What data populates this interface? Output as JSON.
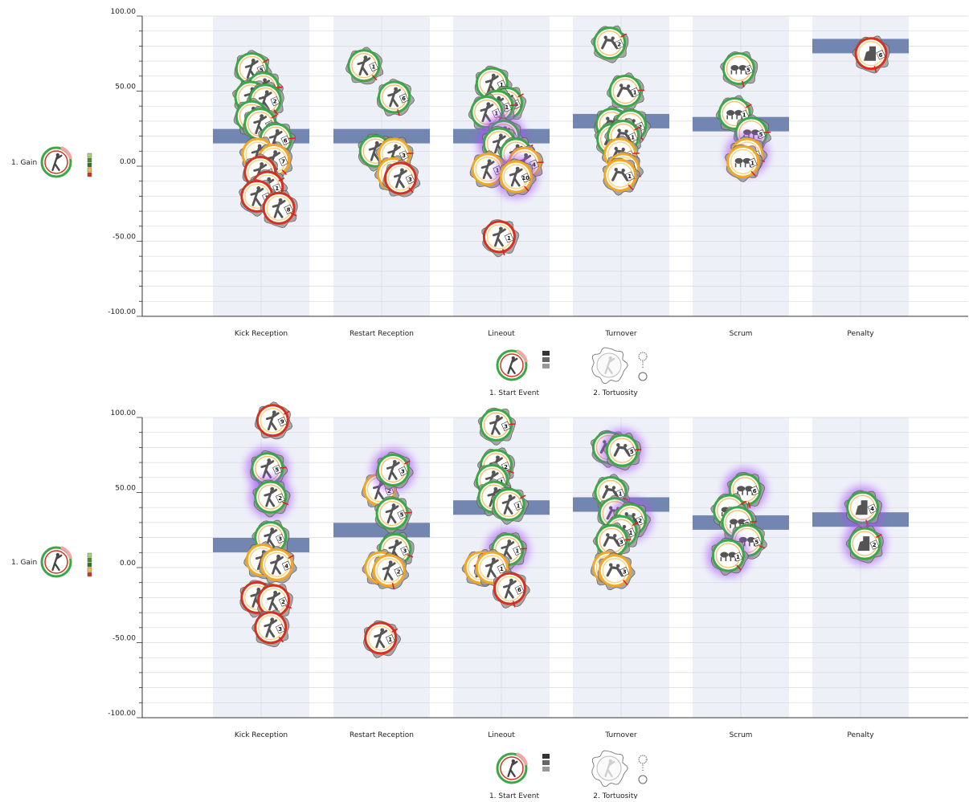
{
  "side_legend": {
    "label": "1. Gain",
    "icon": "gain-glyph-icon",
    "scale_colors": [
      "#a6d96a",
      "#4d9221",
      "#2b7a2b",
      "#f0c030",
      "#d7301f"
    ]
  },
  "bottom_legend": {
    "start_event_label": "1. Start Event",
    "tortuosity_label": "2. Tortuosity",
    "start_event_icon": "start-event-glyph-icon",
    "tortuosity_icon": "tortuosity-glyph-icon"
  },
  "colors": {
    "band": "#eef0f8",
    "median_bar": "#6b7fad",
    "grid": "#d9d9d9",
    "glow": "#a855f7",
    "ring_green": "#3aa845",
    "ring_red": "#d7301f",
    "ring_orange": "#f5a623",
    "silhouette": "#555555"
  },
  "chart_data": [
    {
      "type": "scatter",
      "yticks": [
        "100.00",
        "50.00",
        "0.00",
        "-50.00",
        "-100.00"
      ],
      "ylim": [
        -100,
        100
      ],
      "categories": [
        "Kick Reception",
        "Restart Reception",
        "Lineout",
        "Turnover",
        "Scrum",
        "Penalty"
      ],
      "medians": [
        20,
        20,
        20,
        30,
        28,
        80
      ],
      "points": [
        {
          "c": 0,
          "y": 65,
          "n": "5",
          "dx": -0.45,
          "ring": "green",
          "sil": "kick"
        },
        {
          "c": 0,
          "y": 52,
          "n": "2",
          "dx": 0.1,
          "ring": "green",
          "sil": "kick"
        },
        {
          "c": 0,
          "y": 46,
          "n": "3",
          "dx": -0.5,
          "ring": "green",
          "sil": "kick"
        },
        {
          "c": 0,
          "y": 44,
          "n": "2",
          "dx": 0.2,
          "ring": "green",
          "sil": "kick"
        },
        {
          "c": 0,
          "y": 33,
          "n": "1",
          "dx": -0.45,
          "ring": "green",
          "sil": "kick"
        },
        {
          "c": 0,
          "y": 28,
          "n": "1",
          "dx": -0.05,
          "ring": "green",
          "sil": "kick"
        },
        {
          "c": 0,
          "y": 18,
          "n": "6",
          "dx": 0.7,
          "ring": "green",
          "sil": "kick"
        },
        {
          "c": 0,
          "y": 8,
          "n": "1",
          "dx": -0.15,
          "ring": "orange",
          "sil": "kick"
        },
        {
          "c": 0,
          "y": 4,
          "n": "7",
          "dx": 0.6,
          "ring": "orange",
          "sil": "kick"
        },
        {
          "c": 0,
          "y": -4,
          "n": "2",
          "dx": -0.05,
          "ring": "red",
          "sil": "kick"
        },
        {
          "c": 0,
          "y": -14,
          "n": "1",
          "dx": 0.3,
          "ring": "red",
          "sil": "kick"
        },
        {
          "c": 0,
          "y": -20,
          "n": "1",
          "dx": -0.2,
          "ring": "red",
          "sil": "kick"
        },
        {
          "c": 0,
          "y": -28,
          "n": "8",
          "dx": 0.85,
          "ring": "red",
          "sil": "kick"
        },
        {
          "c": 1,
          "y": 67,
          "n": "1",
          "dx": -0.85,
          "ring": "green",
          "sil": "kick"
        },
        {
          "c": 1,
          "y": 46,
          "n": "6",
          "dx": 0.6,
          "ring": "green",
          "sil": "kick"
        },
        {
          "c": 1,
          "y": 10,
          "n": "1",
          "dx": -0.3,
          "ring": "green",
          "sil": "kick"
        },
        {
          "c": 1,
          "y": 8,
          "n": "3",
          "dx": 0.6,
          "ring": "orange",
          "sil": "kick"
        },
        {
          "c": 1,
          "y": -5,
          "n": "5",
          "dx": 0.55,
          "ring": "orange",
          "sil": "kick"
        },
        {
          "c": 1,
          "y": -8,
          "n": "3",
          "dx": 0.9,
          "ring": "red",
          "sil": "kick"
        },
        {
          "c": 2,
          "y": 55,
          "n": "1",
          "dx": -0.45,
          "ring": "green",
          "sil": "lift"
        },
        {
          "c": 2,
          "y": 42,
          "n": "6",
          "dx": 0.25,
          "ring": "green",
          "sil": "lift"
        },
        {
          "c": 2,
          "y": 40,
          "n": "1",
          "dx": -0.2,
          "ring": "green",
          "sil": "lift"
        },
        {
          "c": 2,
          "y": 36,
          "n": "1",
          "dx": -0.7,
          "ring": "green",
          "sil": "lift"
        },
        {
          "c": 2,
          "y": 20,
          "n": "2",
          "dx": 0.1,
          "ring": "green",
          "sil": "lift",
          "glow": true
        },
        {
          "c": 2,
          "y": 15,
          "n": "1",
          "dx": -0.1,
          "ring": "green",
          "sil": "lift",
          "glow": true
        },
        {
          "c": 2,
          "y": 8,
          "n": "3",
          "dx": 0.7,
          "ring": "green",
          "sil": "lift"
        },
        {
          "c": 2,
          "y": 2,
          "n": "4",
          "dx": 1.1,
          "ring": "orange",
          "sil": "lift"
        },
        {
          "c": 2,
          "y": -2,
          "n": "1",
          "dx": -0.65,
          "ring": "orange",
          "sil": "lift"
        },
        {
          "c": 2,
          "y": -7,
          "n": "10",
          "dx": 0.7,
          "ring": "orange",
          "sil": "lift",
          "glow": true
        },
        {
          "c": 2,
          "y": -47,
          "n": "1",
          "dx": -0.1,
          "ring": "red",
          "sil": "lift"
        },
        {
          "c": 3,
          "y": 82,
          "n": "2",
          "dx": -0.55,
          "ring": "green",
          "sil": "tackle"
        },
        {
          "c": 3,
          "y": 50,
          "n": "1",
          "dx": 0.2,
          "ring": "green",
          "sil": "tackle"
        },
        {
          "c": 3,
          "y": 28,
          "n": "1",
          "dx": -0.45,
          "ring": "green",
          "sil": "tackle"
        },
        {
          "c": 3,
          "y": 27,
          "n": "2",
          "dx": 0.45,
          "ring": "green",
          "sil": "tackle"
        },
        {
          "c": 3,
          "y": 18,
          "n": "2",
          "dx": -0.4,
          "ring": "green",
          "sil": "tackle"
        },
        {
          "c": 3,
          "y": 20,
          "n": "1",
          "dx": 0.1,
          "ring": "green",
          "sil": "tackle"
        },
        {
          "c": 3,
          "y": 8,
          "n": "2",
          "dx": -0.05,
          "ring": "orange",
          "sil": "tackle"
        },
        {
          "c": 3,
          "y": -2,
          "n": "1",
          "dx": 0.1,
          "ring": "orange",
          "sil": "tackle"
        },
        {
          "c": 3,
          "y": -6,
          "n": "1",
          "dx": -0.05,
          "ring": "orange",
          "sil": "tackle"
        },
        {
          "c": 4,
          "y": 65,
          "n": "5",
          "dx": -0.1,
          "ring": "green",
          "sil": "scrum"
        },
        {
          "c": 4,
          "y": 35,
          "n": "1",
          "dx": -0.3,
          "ring": "green",
          "sil": "scrum"
        },
        {
          "c": 4,
          "y": 22,
          "n": "5",
          "dx": 0.5,
          "ring": "green",
          "sil": "scrum"
        },
        {
          "c": 4,
          "y": 8,
          "n": "2",
          "dx": 0.3,
          "ring": "orange",
          "sil": "scrum",
          "glow": true
        },
        {
          "c": 4,
          "y": 3,
          "n": "1",
          "dx": 0.1,
          "ring": "orange",
          "sil": "scrum"
        },
        {
          "c": 5,
          "y": 75,
          "n": "6",
          "dx": 0.5,
          "ring": "red",
          "sil": "penalty"
        }
      ]
    },
    {
      "type": "scatter",
      "yticks": [
        "100.00",
        "50.00",
        "0.00",
        "-50.00",
        "-100.00"
      ],
      "ylim": [
        -100,
        100
      ],
      "categories": [
        "Kick Reception",
        "Restart Reception",
        "Lineout",
        "Turnover",
        "Scrum",
        "Penalty"
      ],
      "medians": [
        15,
        25,
        40,
        42,
        30,
        32
      ],
      "points": [
        {
          "c": 0,
          "y": 98,
          "n": "9",
          "dx": 0.55,
          "ring": "red",
          "sil": "kick"
        },
        {
          "c": 0,
          "y": 66,
          "n": "5",
          "dx": 0.3,
          "ring": "green",
          "sil": "kick",
          "glow": true
        },
        {
          "c": 0,
          "y": 47,
          "n": "2",
          "dx": 0.45,
          "ring": "green",
          "sil": "kick",
          "glow": true
        },
        {
          "c": 0,
          "y": 20,
          "n": "3",
          "dx": 0.45,
          "ring": "green",
          "sil": "kick"
        },
        {
          "c": 0,
          "y": 5,
          "n": "1",
          "dx": 0.05,
          "ring": "orange",
          "sil": "kick"
        },
        {
          "c": 0,
          "y": 2,
          "n": "4",
          "dx": 0.75,
          "ring": "orange",
          "sil": "kick"
        },
        {
          "c": 0,
          "y": -20,
          "n": "1",
          "dx": -0.2,
          "ring": "red",
          "sil": "kick"
        },
        {
          "c": 0,
          "y": -22,
          "n": "2",
          "dx": 0.6,
          "ring": "red",
          "sil": "kick"
        },
        {
          "c": 0,
          "y": -40,
          "n": "3",
          "dx": 0.45,
          "ring": "red",
          "sil": "kick"
        },
        {
          "c": 1,
          "y": 52,
          "n": "2",
          "dx": -0.1,
          "ring": "orange",
          "sil": "kick"
        },
        {
          "c": 1,
          "y": 65,
          "n": "3",
          "dx": 0.55,
          "ring": "green",
          "sil": "kick",
          "glow": true
        },
        {
          "c": 1,
          "y": 36,
          "n": "5",
          "dx": 0.5,
          "ring": "green",
          "sil": "kick"
        },
        {
          "c": 1,
          "y": 12,
          "n": "3",
          "dx": 0.65,
          "ring": "green",
          "sil": "kick"
        },
        {
          "c": 1,
          "y": 0,
          "n": "3",
          "dx": -0.05,
          "ring": "orange",
          "sil": "kick"
        },
        {
          "c": 1,
          "y": -2,
          "n": "2",
          "dx": 0.35,
          "ring": "orange",
          "sil": "kick"
        },
        {
          "c": 1,
          "y": -47,
          "n": "1",
          "dx": -0.05,
          "ring": "red",
          "sil": "kick"
        },
        {
          "c": 2,
          "y": 95,
          "n": "3",
          "dx": -0.25,
          "ring": "green",
          "sil": "lift"
        },
        {
          "c": 2,
          "y": 68,
          "n": "2",
          "dx": -0.25,
          "ring": "green",
          "sil": "lift"
        },
        {
          "c": 2,
          "y": 58,
          "n": "1",
          "dx": -0.45,
          "ring": "green",
          "sil": "lift"
        },
        {
          "c": 2,
          "y": 47,
          "n": "1",
          "dx": -0.35,
          "ring": "green",
          "sil": "lift"
        },
        {
          "c": 2,
          "y": 42,
          "n": "1",
          "dx": 0.35,
          "ring": "green",
          "sil": "lift"
        },
        {
          "c": 2,
          "y": 12,
          "n": "1",
          "dx": 0.3,
          "ring": "green",
          "sil": "lift",
          "glow": true
        },
        {
          "c": 2,
          "y": 0,
          "n": "1",
          "dx": -1.0,
          "ring": "orange",
          "sil": "lift"
        },
        {
          "c": 2,
          "y": 0,
          "n": "1",
          "dx": -0.45,
          "ring": "orange",
          "sil": "lift"
        },
        {
          "c": 2,
          "y": -14,
          "n": "6",
          "dx": 0.4,
          "ring": "red",
          "sil": "lift"
        },
        {
          "c": 3,
          "y": 80,
          "n": "2",
          "dx": -0.6,
          "ring": "green",
          "sil": "tackle"
        },
        {
          "c": 3,
          "y": 78,
          "n": "5",
          "dx": 0.05,
          "ring": "green",
          "sil": "tackle",
          "glow": true
        },
        {
          "c": 3,
          "y": 50,
          "n": "1",
          "dx": -0.5,
          "ring": "green",
          "sil": "tackle"
        },
        {
          "c": 3,
          "y": 36,
          "n": "1",
          "dx": -0.3,
          "ring": "green",
          "sil": "tackle"
        },
        {
          "c": 3,
          "y": 32,
          "n": "2",
          "dx": 0.45,
          "ring": "green",
          "sil": "tackle",
          "glow": true
        },
        {
          "c": 3,
          "y": 24,
          "n": "1",
          "dx": 0.0,
          "ring": "green",
          "sil": "tackle"
        },
        {
          "c": 3,
          "y": 18,
          "n": "3",
          "dx": -0.45,
          "ring": "green",
          "sil": "tackle"
        },
        {
          "c": 3,
          "y": 0,
          "n": "1",
          "dx": -0.6,
          "ring": "orange",
          "sil": "tackle"
        },
        {
          "c": 3,
          "y": -2,
          "n": "3",
          "dx": -0.3,
          "ring": "orange",
          "sil": "tackle"
        },
        {
          "c": 4,
          "y": 52,
          "n": "6",
          "dx": 0.2,
          "ring": "green",
          "sil": "scrum",
          "glow": true
        },
        {
          "c": 4,
          "y": 38,
          "n": "1",
          "dx": -0.55,
          "ring": "green",
          "sil": "scrum"
        },
        {
          "c": 4,
          "y": 30,
          "n": "2",
          "dx": -0.15,
          "ring": "green",
          "sil": "scrum"
        },
        {
          "c": 4,
          "y": 18,
          "n": "5",
          "dx": 0.3,
          "ring": "green",
          "sil": "scrum"
        },
        {
          "c": 4,
          "y": 8,
          "n": "1",
          "dx": -0.6,
          "ring": "green",
          "sil": "scrum",
          "glow": true
        },
        {
          "c": 5,
          "y": 40,
          "n": "4",
          "dx": 0.1,
          "ring": "green",
          "sil": "penalty",
          "glow": true
        },
        {
          "c": 5,
          "y": 16,
          "n": "2",
          "dx": 0.2,
          "ring": "green",
          "sil": "penalty",
          "glow": true
        }
      ]
    }
  ]
}
